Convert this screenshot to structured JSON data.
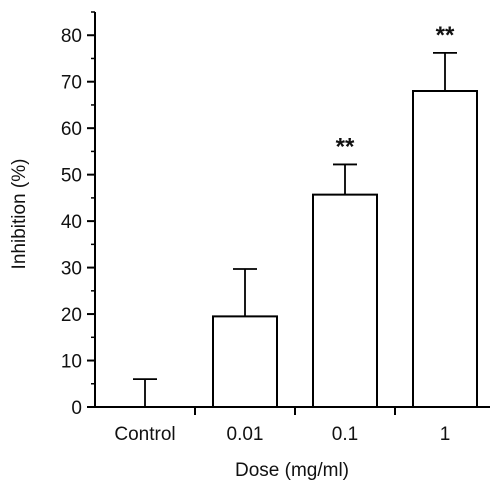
{
  "chart_data": {
    "type": "bar",
    "categories": [
      "Control",
      "0.01",
      "0.1",
      "1"
    ],
    "values": [
      0,
      19.5,
      45.7,
      68.0
    ],
    "errors": [
      6.0,
      10.2,
      6.5,
      8.2
    ],
    "annotations": [
      "",
      "",
      "**",
      "**"
    ],
    "xlabel": "Dose (mg/ml)",
    "ylabel": "Inhibition (%)",
    "ylim": [
      0,
      85
    ],
    "yticks": [
      0,
      10,
      20,
      30,
      40,
      50,
      60,
      70,
      80
    ],
    "grid": false,
    "bar_fill": "#ffffff",
    "bar_stroke": "#000000"
  }
}
